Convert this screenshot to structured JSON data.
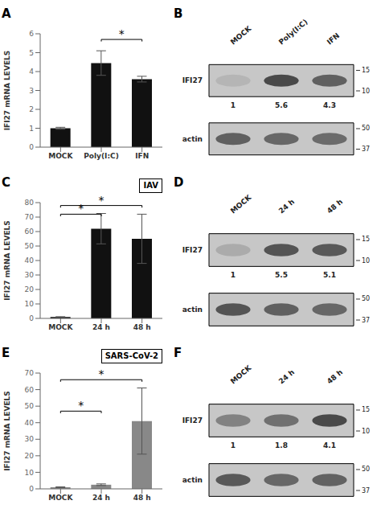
{
  "chart_data": [
    {
      "type": "bar",
      "label": "A",
      "categories": [
        "MOCK",
        "Poly(I:C)",
        "IFN"
      ],
      "values": [
        1.0,
        4.45,
        3.6
      ],
      "errors": [
        0.05,
        0.65,
        0.15
      ],
      "ylabel": "IFI27 mRNA LEVELS",
      "ylim": [
        0,
        6
      ],
      "yticks": [
        0,
        1,
        2,
        3,
        4,
        5,
        6
      ],
      "color": "#111111",
      "annotations": [
        {
          "from": "Poly(I:C)",
          "to": "IFN",
          "y": 5.7,
          "text": "*"
        }
      ]
    },
    {
      "type": "blot",
      "label": "B",
      "categories": [
        "MOCK",
        "Poly(I:C)",
        "IFN"
      ],
      "color": "#c7c7c7",
      "rows": [
        {
          "name": "IFI27",
          "values": [
            0.08,
            0.55,
            0.45
          ],
          "quantification": [
            1,
            5.6,
            4.3
          ],
          "markers": [
            15,
            10
          ]
        },
        {
          "name": "actin",
          "values": [
            0.45,
            0.42,
            0.4
          ],
          "markers": [
            50,
            37
          ]
        }
      ]
    },
    {
      "type": "bar",
      "label": "C",
      "box_label": "IAV",
      "categories": [
        "MOCK",
        "24 h",
        "48 h"
      ],
      "values": [
        1.0,
        62.0,
        55.0
      ],
      "errors": [
        0.2,
        10.5,
        17.0
      ],
      "ylabel": "IFI27 mRNA LEVELS",
      "ylim": [
        0,
        80
      ],
      "yticks": [
        0,
        10,
        20,
        30,
        40,
        50,
        60,
        70,
        80
      ],
      "color": "#111111",
      "annotations": [
        {
          "from": "MOCK",
          "to": "24 h",
          "y": 72,
          "text": "*"
        },
        {
          "from": "MOCK",
          "to": "48 h",
          "y": 78,
          "text": "*"
        }
      ]
    },
    {
      "type": "blot",
      "label": "D",
      "categories": [
        "MOCK",
        "24 h",
        "48 h"
      ],
      "color": "#c7c7c7",
      "rows": [
        {
          "name": "IFI27",
          "values": [
            0.12,
            0.5,
            0.48
          ],
          "quantification": [
            1,
            5.5,
            5.1
          ],
          "markers": [
            15,
            10
          ]
        },
        {
          "name": "actin",
          "values": [
            0.5,
            0.45,
            0.42
          ],
          "markers": [
            50,
            37
          ]
        }
      ]
    },
    {
      "type": "bar",
      "label": "E",
      "box_label": "SARS-CoV-2",
      "categories": [
        "MOCK",
        "24 h",
        "48 h"
      ],
      "values": [
        1.0,
        2.5,
        41.0
      ],
      "errors": [
        0.2,
        0.5,
        20.0
      ],
      "ylabel": "IFI27 mRNA LEVELS",
      "ylim": [
        0,
        70
      ],
      "yticks": [
        0,
        10,
        20,
        30,
        40,
        50,
        60,
        70
      ],
      "color": "#888888",
      "annotations": [
        {
          "from": "MOCK",
          "to": "24 h",
          "y": 47,
          "text": "*"
        },
        {
          "from": "MOCK",
          "to": "48 h",
          "y": 66,
          "text": "*"
        }
      ]
    },
    {
      "type": "blot",
      "label": "F",
      "categories": [
        "MOCK",
        "24 h",
        "48 h"
      ],
      "color": "#c7c7c7",
      "rows": [
        {
          "name": "IFI27",
          "values": [
            0.3,
            0.38,
            0.55
          ],
          "quantification": [
            1,
            1.8,
            4.1
          ],
          "markers": [
            15,
            10
          ]
        },
        {
          "name": "actin",
          "values": [
            0.48,
            0.42,
            0.44
          ],
          "markers": [
            50,
            37
          ]
        }
      ]
    }
  ]
}
